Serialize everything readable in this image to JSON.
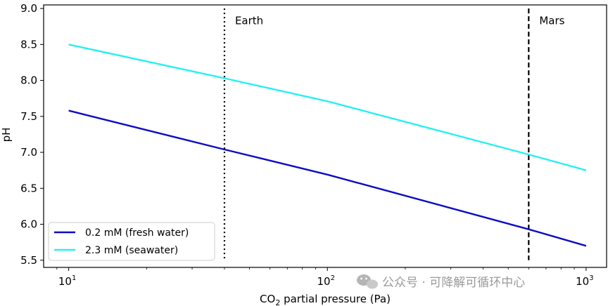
{
  "chart_data": {
    "type": "line",
    "xscale": "log",
    "xlim": [
      8,
      1200
    ],
    "ylim": [
      5.4,
      9.05
    ],
    "xlabel_main": "CO",
    "xlabel_sub": "2",
    "xlabel_rest": " partial pressure (Pa)",
    "ylabel": "pH",
    "xticks": [
      {
        "value": 10,
        "base": "10",
        "exp": "1"
      },
      {
        "value": 100,
        "base": "10",
        "exp": "2"
      },
      {
        "value": 1000,
        "base": "10",
        "exp": "3"
      }
    ],
    "yticks": [
      5.5,
      6.0,
      6.5,
      7.0,
      7.5,
      8.0,
      8.5,
      9.0
    ],
    "ytick_labels": [
      "5.5",
      "6.0",
      "6.5",
      "7.0",
      "7.5",
      "8.0",
      "8.5",
      "9.0"
    ],
    "series": [
      {
        "name": "0.2 mM (fresh water)",
        "color": "#0c0cc4",
        "x": [
          10,
          40,
          100,
          600,
          1000
        ],
        "y": [
          7.58,
          7.04,
          6.69,
          5.93,
          5.7
        ]
      },
      {
        "name": "2.3 mM (seawater)",
        "color": "#28f0f0",
        "x": [
          10,
          40,
          100,
          600,
          1000
        ],
        "y": [
          8.5,
          8.03,
          7.71,
          6.97,
          6.75
        ]
      }
    ],
    "vlines": [
      {
        "x": 40,
        "style": "dotted",
        "label": "Earth"
      },
      {
        "x": 600,
        "style": "dashed",
        "label": "Mars"
      }
    ],
    "legend_position": "lower-left",
    "grid": false
  },
  "watermark": "公众号 · 可降解可循环中心",
  "colors": {
    "frame": "#000000",
    "watermark_icon": "#b5b5b5"
  }
}
